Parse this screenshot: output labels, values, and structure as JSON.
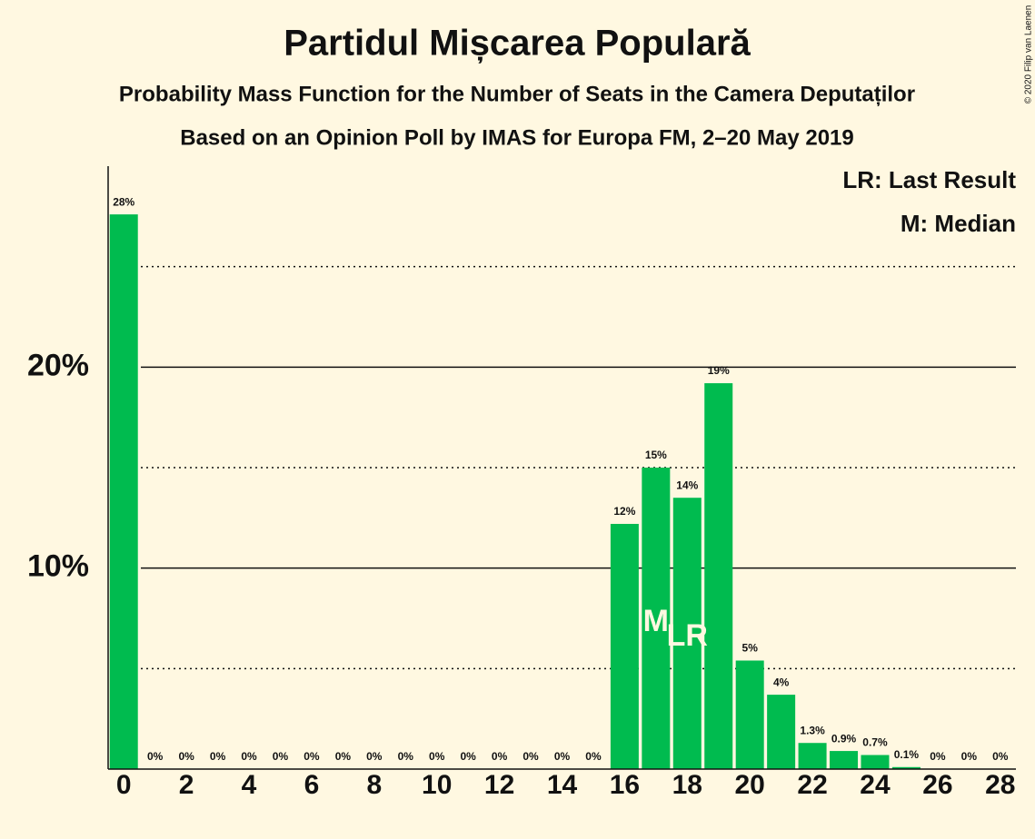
{
  "chart_data": {
    "type": "bar",
    "title": "Partidul Mișcarea Populară",
    "subtitle": "Probability Mass Function for the Number of Seats in the Camera Deputaților",
    "subtitle2": "Based on an Opinion Poll by IMAS for Europa FM, 2–20 May 2019",
    "copyright": "© 2020 Filip van Laenen",
    "x": [
      0,
      1,
      2,
      3,
      4,
      5,
      6,
      7,
      8,
      9,
      10,
      11,
      12,
      13,
      14,
      15,
      16,
      17,
      18,
      19,
      20,
      21,
      22,
      23,
      24,
      25,
      26,
      27,
      28
    ],
    "values": [
      27.6,
      0,
      0,
      0,
      0,
      0,
      0,
      0,
      0,
      0,
      0,
      0,
      0,
      0,
      0,
      0,
      12.2,
      15.0,
      13.5,
      19.2,
      5.4,
      3.7,
      1.3,
      0.9,
      0.7,
      0.1,
      0,
      0,
      0
    ],
    "value_labels": [
      "28%",
      "0%",
      "0%",
      "0%",
      "0%",
      "0%",
      "0%",
      "0%",
      "0%",
      "0%",
      "0%",
      "0%",
      "0%",
      "0%",
      "0%",
      "0%",
      "12%",
      "15%",
      "14%",
      "19%",
      "5%",
      "4%",
      "1.3%",
      "0.9%",
      "0.7%",
      "0.1%",
      "0%",
      "0%",
      "0%"
    ],
    "color": "#00bb4f",
    "xlim": [
      -0.5,
      28.5
    ],
    "xticks": [
      0,
      2,
      4,
      6,
      8,
      10,
      12,
      14,
      16,
      18,
      20,
      22,
      24,
      26,
      28
    ],
    "ylim": [
      0,
      30
    ],
    "yticks": [
      {
        "value": 10,
        "label": "10%"
      },
      {
        "value": 20,
        "label": "20%"
      }
    ],
    "minor_yticks": [
      5,
      15,
      25
    ],
    "grid": true,
    "annotations": [
      {
        "text": "M",
        "x": 17
      },
      {
        "text": "LR",
        "x": 18
      }
    ],
    "legend": [
      "LR: Last Result",
      "M: Median"
    ]
  }
}
